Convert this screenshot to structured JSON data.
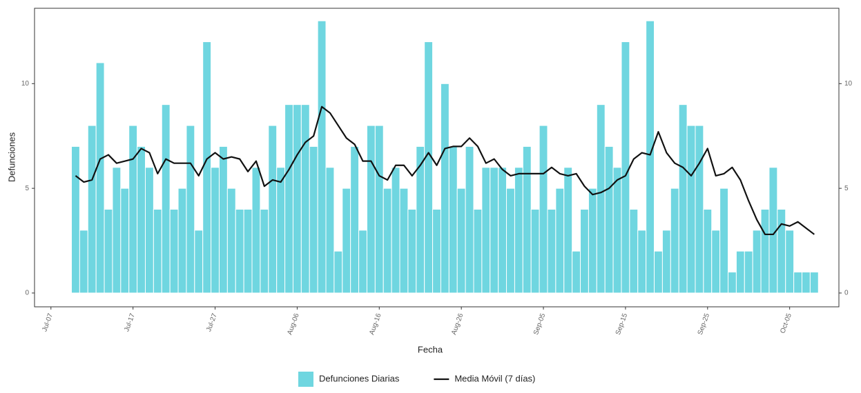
{
  "chart_data": {
    "type": "bar",
    "x_label": "Fecha",
    "y_label": "Defunciones",
    "x": [
      "Jul-10",
      "Jul-11",
      "Jul-12",
      "Jul-13",
      "Jul-14",
      "Jul-15",
      "Jul-16",
      "Jul-17",
      "Jul-18",
      "Jul-19",
      "Jul-20",
      "Jul-21",
      "Jul-22",
      "Jul-23",
      "Jul-24",
      "Jul-25",
      "Jul-26",
      "Jul-27",
      "Jul-28",
      "Jul-29",
      "Jul-30",
      "Jul-31",
      "Aug-01",
      "Aug-02",
      "Aug-03",
      "Aug-04",
      "Aug-05",
      "Aug-06",
      "Aug-07",
      "Aug-08",
      "Aug-09",
      "Aug-10",
      "Aug-11",
      "Aug-12",
      "Aug-13",
      "Aug-14",
      "Aug-15",
      "Aug-16",
      "Aug-17",
      "Aug-18",
      "Aug-19",
      "Aug-20",
      "Aug-21",
      "Aug-22",
      "Aug-23",
      "Aug-24",
      "Aug-25",
      "Aug-26",
      "Aug-27",
      "Aug-28",
      "Aug-29",
      "Aug-30",
      "Aug-31",
      "Sep-01",
      "Sep-02",
      "Sep-03",
      "Sep-04",
      "Sep-05",
      "Sep-06",
      "Sep-07",
      "Sep-08",
      "Sep-09",
      "Sep-10",
      "Sep-11",
      "Sep-12",
      "Sep-13",
      "Sep-14",
      "Sep-15",
      "Sep-16",
      "Sep-17",
      "Sep-18",
      "Sep-19",
      "Sep-20",
      "Sep-21",
      "Sep-22",
      "Sep-23",
      "Sep-24",
      "Sep-25",
      "Sep-26",
      "Sep-27",
      "Sep-28",
      "Sep-29",
      "Sep-30",
      "Oct-01",
      "Oct-02",
      "Oct-03",
      "Oct-04",
      "Oct-05",
      "Oct-06",
      "Oct-07",
      "Oct-08"
    ],
    "series": [
      {
        "name": "Defunciones Diarias",
        "type": "bar",
        "color": "#6fd6e0",
        "values": [
          7,
          3,
          8,
          11,
          4,
          6,
          5,
          8,
          7,
          6,
          4,
          9,
          4,
          5,
          8,
          3,
          12,
          6,
          7,
          5,
          4,
          4,
          6,
          4,
          8,
          6,
          9,
          9,
          9,
          7,
          13,
          6,
          2,
          5,
          7,
          3,
          8,
          8,
          5,
          6,
          5,
          4,
          7,
          12,
          4,
          10,
          7,
          5,
          7,
          4,
          6,
          6,
          6,
          5,
          6,
          7,
          4,
          8,
          4,
          5,
          6,
          2,
          4,
          5,
          9,
          7,
          6,
          12,
          4,
          3,
          13,
          2,
          3,
          5,
          9,
          8,
          8,
          4,
          3,
          5,
          1,
          2,
          2,
          3,
          4,
          6,
          4,
          3,
          1,
          1,
          1
        ]
      },
      {
        "name": "Media Móvil (7 días)",
        "type": "line",
        "color": "#111111",
        "values": [
          5.6,
          5.3,
          5.4,
          6.4,
          6.6,
          6.2,
          6.3,
          6.4,
          6.9,
          6.7,
          5.7,
          6.4,
          6.2,
          6.2,
          6.2,
          5.6,
          6.4,
          6.7,
          6.4,
          6.5,
          6.4,
          5.8,
          6.3,
          5.1,
          5.4,
          5.3,
          5.9,
          6.6,
          7.2,
          7.5,
          8.9,
          8.6,
          8.0,
          7.4,
          7.1,
          6.3,
          6.3,
          5.6,
          5.4,
          6.1,
          6.1,
          5.6,
          6.1,
          6.7,
          6.1,
          6.9,
          7.0,
          7.0,
          7.4,
          7.0,
          6.2,
          6.4,
          5.9,
          5.6,
          5.7,
          5.7,
          5.7,
          5.7,
          6.0,
          5.7,
          5.6,
          5.7,
          5.1,
          4.7,
          4.8,
          5.0,
          5.4,
          5.6,
          6.4,
          6.7,
          6.6,
          7.7,
          6.7,
          6.2,
          6.0,
          5.6,
          6.2,
          6.9,
          5.6,
          5.7,
          6.0,
          5.4,
          4.4,
          3.5,
          2.8,
          2.8,
          3.3,
          3.2,
          3.4,
          3.1,
          2.8
        ]
      }
    ],
    "xlim": [
      "Jul-05",
      "Oct-11"
    ],
    "xticks": [
      "Jul-07",
      "Jul-17",
      "Jul-27",
      "Aug-06",
      "Aug-16",
      "Aug-26",
      "Sep-05",
      "Sep-15",
      "Sep-25",
      "Oct-05"
    ],
    "ylim": [
      -0.66,
      13.6
    ],
    "yticks": [
      0,
      5,
      10
    ],
    "y2lim": [
      -0.66,
      13.6
    ],
    "y2ticks": [
      0,
      5,
      10
    ],
    "grid": false,
    "legend": "bottom"
  }
}
